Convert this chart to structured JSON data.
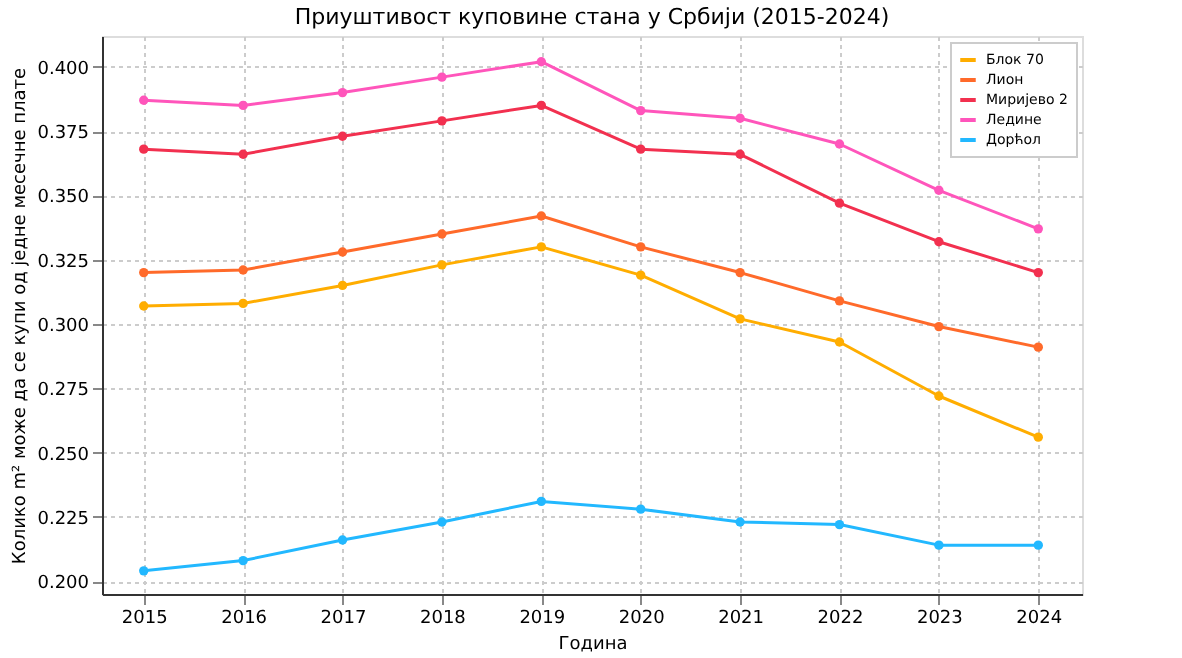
{
  "chart_data": {
    "type": "line",
    "title": "Приуштивост куповине стана у Србији (2015-2024)",
    "xlabel": "Година",
    "ylabel": "Колико m² може да се купи од једне месечне плате",
    "x": [
      2015,
      2016,
      2017,
      2018,
      2019,
      2020,
      2021,
      2022,
      2023,
      2024
    ],
    "series": [
      {
        "name": "Блок 70",
        "color": "#ffad00",
        "values": [
          0.307,
          0.308,
          0.315,
          0.323,
          0.33,
          0.319,
          0.302,
          0.293,
          0.272,
          0.256
        ]
      },
      {
        "name": "Лион",
        "color": "#ff6a2a",
        "values": [
          0.32,
          0.321,
          0.328,
          0.335,
          0.342,
          0.33,
          0.32,
          0.309,
          0.299,
          0.291
        ]
      },
      {
        "name": "Миријево 2",
        "color": "#f2304f",
        "values": [
          0.368,
          0.366,
          0.373,
          0.379,
          0.385,
          0.368,
          0.366,
          0.347,
          0.332,
          0.32
        ]
      },
      {
        "name": "Ледине",
        "color": "#ff55bb",
        "values": [
          0.387,
          0.385,
          0.39,
          0.396,
          0.402,
          0.383,
          0.38,
          0.37,
          0.352,
          0.337
        ]
      },
      {
        "name": "Дорћол",
        "color": "#22b8ff",
        "values": [
          0.204,
          0.208,
          0.216,
          0.223,
          0.231,
          0.228,
          0.223,
          0.222,
          0.214,
          0.214
        ]
      }
    ],
    "xlim": [
      2014.58,
      2024.44
    ],
    "xticks": [
      2015,
      2016,
      2017,
      2018,
      2019,
      2020,
      2021,
      2022,
      2023,
      2024
    ],
    "ylim": [
      0.195,
      0.412
    ],
    "yticks": [
      {
        "value": 0.2,
        "label": "0.200"
      },
      {
        "value": 0.225,
        "label": "0.225"
      },
      {
        "value": 0.25,
        "label": "0.250"
      },
      {
        "value": 0.275,
        "label": "0.275"
      },
      {
        "value": 0.3,
        "label": "0.300"
      },
      {
        "value": 0.325,
        "label": "0.325"
      },
      {
        "value": 0.35,
        "label": "0.350"
      },
      {
        "value": 0.375,
        "label": "0.375"
      },
      {
        "value": 0.4,
        "label": "0.400"
      }
    ],
    "grid": true,
    "legend": "top right",
    "marker": "circle",
    "line_style": "solid"
  }
}
